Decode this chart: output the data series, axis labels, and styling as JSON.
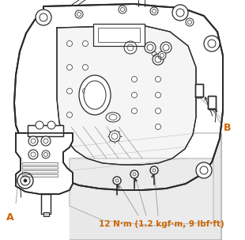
{
  "label_A": "A",
  "label_B": "B",
  "torque_text": "12 N·m (1.2 kgf·m, 9 lbf·ft)",
  "torque_color": "#CC6600",
  "label_color": "#CC6600",
  "bg_color": "#ffffff",
  "line_color": "#2a2a2a",
  "fig_width": 3.1,
  "fig_height": 3.03,
  "dpi": 100
}
